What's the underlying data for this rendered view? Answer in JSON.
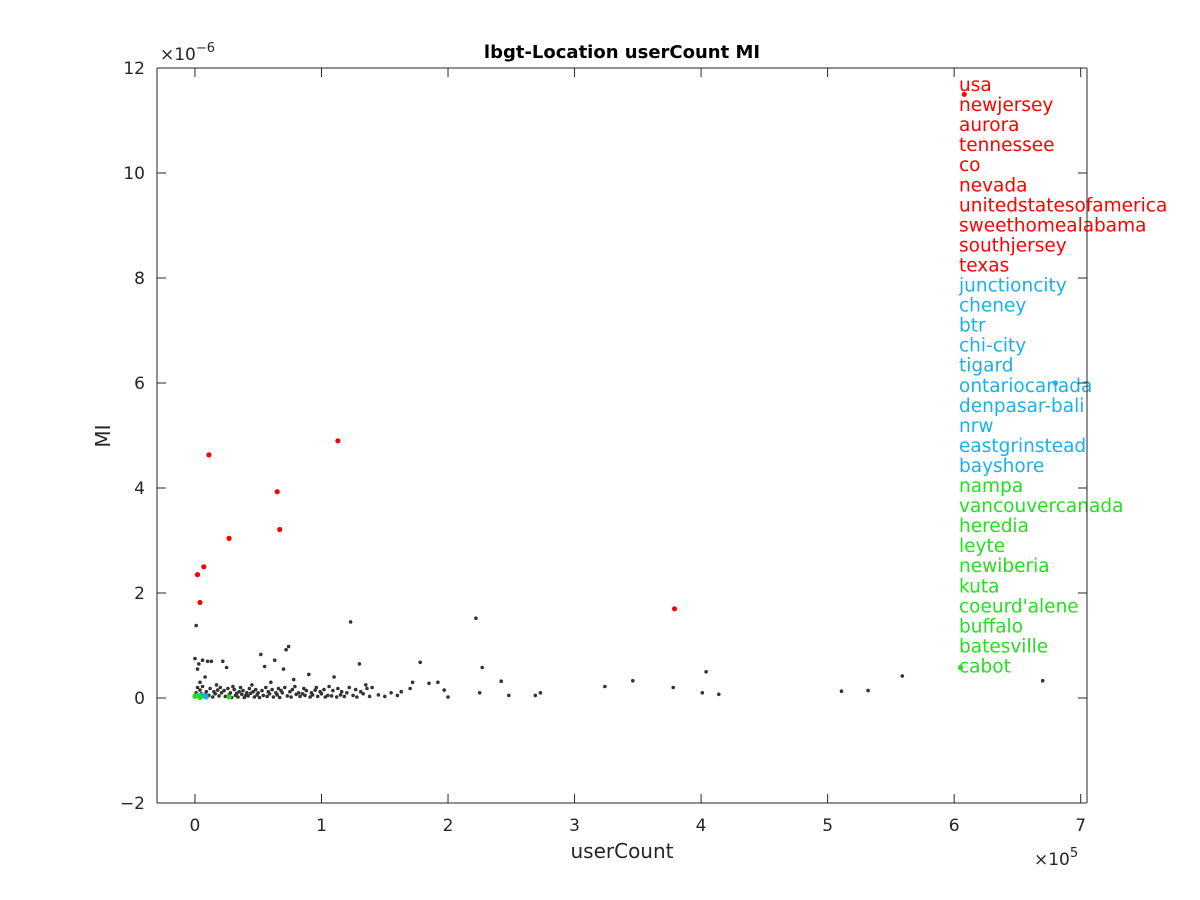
{
  "chart_data": {
    "type": "scatter",
    "title": "lbgt-Location userCount MI",
    "xlabel": "userCount",
    "ylabel": "MI",
    "x_exponent_label": "×10",
    "x_exponent": "5",
    "y_exponent_label": "×10",
    "y_exponent": "−6",
    "xlim": [
      -0.3,
      7.05
    ],
    "ylim": [
      -2,
      12
    ],
    "x_ticks": [
      0,
      1,
      2,
      3,
      4,
      5,
      6,
      7
    ],
    "y_ticks": [
      -2,
      0,
      2,
      4,
      6,
      8,
      10,
      12
    ],
    "x_tick_labels": [
      "0",
      "1",
      "2",
      "3",
      "4",
      "5",
      "6",
      "7"
    ],
    "y_tick_labels": [
      "−2",
      "0",
      "2",
      "4",
      "6",
      "8",
      "10",
      "12"
    ],
    "grid": false,
    "colors": {
      "other": "#333333",
      "red": "#ff0000",
      "blue": "#1ab0e8",
      "green": "#22e01e"
    },
    "series": [
      {
        "color_key": "other",
        "points": [
          [
            0.0,
            0.75
          ],
          [
            0.02,
            0.55
          ],
          [
            0.01,
            1.38
          ],
          [
            0.03,
            0.65
          ],
          [
            0.06,
            0.72
          ],
          [
            0.1,
            0.7
          ],
          [
            0.13,
            0.7
          ],
          [
            0.25,
            0.58
          ],
          [
            0.22,
            0.7
          ],
          [
            0.52,
            0.83
          ],
          [
            0.55,
            0.6
          ],
          [
            0.63,
            0.72
          ],
          [
            0.72,
            0.92
          ],
          [
            0.74,
            0.98
          ],
          [
            0.7,
            0.55
          ],
          [
            0.78,
            0.35
          ],
          [
            0.9,
            0.45
          ],
          [
            1.1,
            0.4
          ],
          [
            1.23,
            1.45
          ],
          [
            1.3,
            0.65
          ],
          [
            1.4,
            0.2
          ],
          [
            1.55,
            0.1
          ],
          [
            1.72,
            0.3
          ],
          [
            1.78,
            0.68
          ],
          [
            1.85,
            0.28
          ],
          [
            1.97,
            0.15
          ],
          [
            2.22,
            1.52
          ],
          [
            2.27,
            0.58
          ],
          [
            2.42,
            0.32
          ],
          [
            2.48,
            0.05
          ],
          [
            2.69,
            0.05
          ],
          [
            2.73,
            0.1
          ],
          [
            3.24,
            0.22
          ],
          [
            3.46,
            0.33
          ],
          [
            3.78,
            0.2
          ],
          [
            4.01,
            0.1
          ],
          [
            4.04,
            0.5
          ],
          [
            4.14,
            0.07
          ],
          [
            5.11,
            0.13
          ],
          [
            5.32,
            0.14
          ],
          [
            5.59,
            0.42
          ],
          [
            6.7,
            0.33
          ],
          [
            2.25,
            0.1
          ],
          [
            2.0,
            0.02
          ],
          [
            1.6,
            0.05
          ],
          [
            1.5,
            0.03
          ],
          [
            1.35,
            0.25
          ],
          [
            1.2,
            0.1
          ],
          [
            1.05,
            0.05
          ],
          [
            0.95,
            0.15
          ],
          [
            0.85,
            0.08
          ],
          [
            0.6,
            0.3
          ],
          [
            0.45,
            0.25
          ],
          [
            0.4,
            0.05
          ],
          [
            0.35,
            0.12
          ],
          [
            0.3,
            0.22
          ],
          [
            0.18,
            0.15
          ],
          [
            0.08,
            0.4
          ],
          [
            0.04,
            0.3
          ],
          [
            0.02,
            0.2
          ],
          [
            0.0,
            0.05
          ],
          [
            0.01,
            0.1
          ],
          [
            0.03,
            0.02
          ],
          [
            0.05,
            0.08
          ],
          [
            0.07,
            0.03
          ],
          [
            0.09,
            0.12
          ],
          [
            0.11,
            0.05
          ],
          [
            0.14,
            0.02
          ],
          [
            0.16,
            0.08
          ],
          [
            0.19,
            0.04
          ],
          [
            0.21,
            0.1
          ],
          [
            0.24,
            0.03
          ],
          [
            0.27,
            0.06
          ],
          [
            0.29,
            0.01
          ],
          [
            0.32,
            0.05
          ],
          [
            0.34,
            0.02
          ],
          [
            0.37,
            0.07
          ],
          [
            0.39,
            0.01
          ],
          [
            0.42,
            0.04
          ],
          [
            0.44,
            0.09
          ],
          [
            0.47,
            0.02
          ],
          [
            0.49,
            0.06
          ],
          [
            0.51,
            0.01
          ],
          [
            0.54,
            0.05
          ],
          [
            0.57,
            0.03
          ],
          [
            0.59,
            0.08
          ],
          [
            0.62,
            0.02
          ],
          [
            0.65,
            0.06
          ],
          [
            0.67,
            0.01
          ],
          [
            0.69,
            0.1
          ],
          [
            0.73,
            0.04
          ],
          [
            0.76,
            0.02
          ],
          [
            0.8,
            0.07
          ],
          [
            0.83,
            0.03
          ],
          [
            0.87,
            0.05
          ],
          [
            0.91,
            0.02
          ],
          [
            0.93,
            0.06
          ],
          [
            0.97,
            0.03
          ],
          [
            1.0,
            0.08
          ],
          [
            1.03,
            0.02
          ],
          [
            1.08,
            0.04
          ],
          [
            1.12,
            0.02
          ],
          [
            1.15,
            0.06
          ],
          [
            1.18,
            0.03
          ],
          [
            1.25,
            0.05
          ],
          [
            1.28,
            0.02
          ],
          [
            1.33,
            0.08
          ],
          [
            1.38,
            0.03
          ],
          [
            1.45,
            0.06
          ],
          [
            1.63,
            0.12
          ],
          [
            1.7,
            0.18
          ],
          [
            1.92,
            0.3
          ],
          [
            0.02,
            0.04
          ],
          [
            0.04,
            0.15
          ],
          [
            0.06,
            0.22
          ],
          [
            0.08,
            0.06
          ],
          [
            0.12,
            0.18
          ],
          [
            0.15,
            0.12
          ],
          [
            0.17,
            0.25
          ],
          [
            0.2,
            0.2
          ],
          [
            0.23,
            0.14
          ],
          [
            0.26,
            0.18
          ],
          [
            0.28,
            0.1
          ],
          [
            0.31,
            0.16
          ],
          [
            0.33,
            0.09
          ],
          [
            0.36,
            0.2
          ],
          [
            0.38,
            0.14
          ],
          [
            0.41,
            0.1
          ],
          [
            0.43,
            0.18
          ],
          [
            0.46,
            0.12
          ],
          [
            0.48,
            0.16
          ],
          [
            0.5,
            0.1
          ],
          [
            0.53,
            0.14
          ],
          [
            0.56,
            0.2
          ],
          [
            0.58,
            0.12
          ],
          [
            0.61,
            0.16
          ],
          [
            0.64,
            0.1
          ],
          [
            0.66,
            0.18
          ],
          [
            0.68,
            0.14
          ],
          [
            0.71,
            0.2
          ],
          [
            0.75,
            0.12
          ],
          [
            0.77,
            0.16
          ],
          [
            0.79,
            0.22
          ],
          [
            0.82,
            0.1
          ],
          [
            0.86,
            0.18
          ],
          [
            0.88,
            0.14
          ],
          [
            0.92,
            0.1
          ],
          [
            0.96,
            0.2
          ],
          [
            0.99,
            0.12
          ],
          [
            1.02,
            0.16
          ],
          [
            1.06,
            0.22
          ],
          [
            1.09,
            0.14
          ],
          [
            1.13,
            0.18
          ],
          [
            1.16,
            0.12
          ],
          [
            1.22,
            0.2
          ],
          [
            1.27,
            0.16
          ],
          [
            1.31,
            0.12
          ],
          [
            1.36,
            0.18
          ]
        ]
      },
      {
        "color_key": "red",
        "points": [
          [
            0.11,
            4.63
          ],
          [
            1.13,
            4.9
          ],
          [
            0.65,
            3.93
          ],
          [
            0.67,
            3.21
          ],
          [
            0.27,
            3.04
          ],
          [
            0.07,
            2.5
          ],
          [
            0.02,
            2.35
          ],
          [
            0.04,
            1.82
          ],
          [
            3.79,
            1.7
          ],
          [
            6.08,
            11.5
          ]
        ]
      },
      {
        "color_key": "blue",
        "points": [
          [
            0.05,
            0.05
          ],
          [
            0.09,
            0.02
          ],
          [
            0.07,
            0.04
          ],
          [
            6.8,
            6.0
          ]
        ]
      },
      {
        "color_key": "green",
        "points": [
          [
            0.0,
            0.03
          ],
          [
            0.04,
            0.01
          ],
          [
            0.27,
            0.02
          ],
          [
            0.02,
            0.05
          ],
          [
            6.05,
            0.58
          ]
        ]
      }
    ],
    "legend_placement": "right",
    "legend": [
      {
        "label": "usa",
        "color_key": "red"
      },
      {
        "label": "newjersey",
        "color_key": "red"
      },
      {
        "label": "aurora",
        "color_key": "red"
      },
      {
        "label": "tennessee",
        "color_key": "red"
      },
      {
        "label": "co",
        "color_key": "red"
      },
      {
        "label": "nevada",
        "color_key": "red"
      },
      {
        "label": "unitedstatesofamerica",
        "color_key": "red"
      },
      {
        "label": "sweethomealabama",
        "color_key": "red"
      },
      {
        "label": "southjersey",
        "color_key": "red"
      },
      {
        "label": "texas",
        "color_key": "red"
      },
      {
        "label": "junctioncity",
        "color_key": "blue"
      },
      {
        "label": "cheney",
        "color_key": "blue"
      },
      {
        "label": "btr",
        "color_key": "blue"
      },
      {
        "label": "chi-city",
        "color_key": "blue"
      },
      {
        "label": "tigard",
        "color_key": "blue"
      },
      {
        "label": "ontariocanada",
        "color_key": "blue"
      },
      {
        "label": "denpasar-bali",
        "color_key": "blue"
      },
      {
        "label": "nrw",
        "color_key": "blue"
      },
      {
        "label": "eastgrinstead",
        "color_key": "blue"
      },
      {
        "label": "bayshore",
        "color_key": "blue"
      },
      {
        "label": "nampa",
        "color_key": "green"
      },
      {
        "label": "vancouvercanada",
        "color_key": "green"
      },
      {
        "label": "heredia",
        "color_key": "green"
      },
      {
        "label": "leyte",
        "color_key": "green"
      },
      {
        "label": "newiberia",
        "color_key": "green"
      },
      {
        "label": "kuta",
        "color_key": "green"
      },
      {
        "label": "coeurd'alene",
        "color_key": "green"
      },
      {
        "label": "buffalo",
        "color_key": "green"
      },
      {
        "label": "batesville",
        "color_key": "green"
      },
      {
        "label": "cabot",
        "color_key": "green"
      }
    ]
  }
}
